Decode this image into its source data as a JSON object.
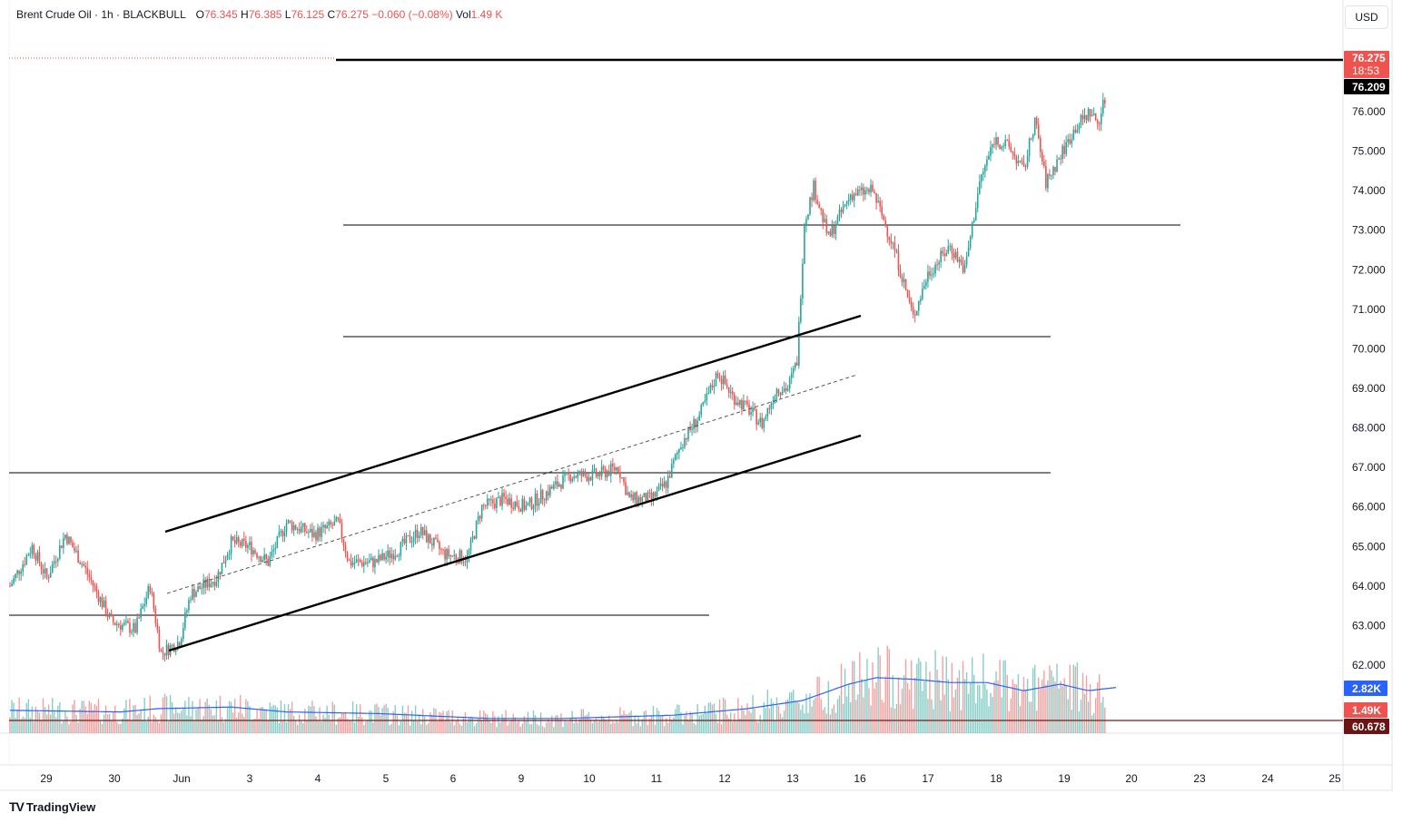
{
  "legend": {
    "symbol": "Brent Crude Oil · 1h · BLACKBULL",
    "open_key": "O",
    "open": "76.345",
    "high_key": "H",
    "high": "76.385",
    "low_key": "L",
    "low": "76.125",
    "close_key": "C",
    "close": "76.275",
    "change": "−0.060 (−0.08%)",
    "vol_key": "Vol",
    "vol": "1.49 K"
  },
  "currency_button": "USD",
  "branding": "TradingView",
  "colors": {
    "up": "#26a69a",
    "down": "#ef5350",
    "volume_ma": "#2962ff",
    "line": "#000000",
    "grid": "#e0e3eb"
  },
  "price_badges": {
    "last_price": "76.275",
    "countdown": "18:53",
    "level": "76.209",
    "vol_ma": "2.82K",
    "vol": "1.49K",
    "vol_level": "60.678"
  },
  "chart_data": {
    "type": "candlestick",
    "symbol": "Brent Crude Oil",
    "interval": "1h",
    "y_axis": {
      "ticks": [
        "76.000",
        "75.000",
        "74.000",
        "73.000",
        "72.000",
        "71.000",
        "70.000",
        "69.000",
        "68.000",
        "67.000",
        "66.000",
        "65.000",
        "64.000",
        "63.000",
        "62.000"
      ],
      "range": [
        60.4,
        77.3
      ]
    },
    "x_axis": {
      "ticks": [
        "29",
        "30",
        "Jun",
        "3",
        "4",
        "5",
        "6",
        "9",
        "10",
        "11",
        "12",
        "13",
        "16",
        "17",
        "18",
        "19",
        "20",
        "23",
        "24",
        "25"
      ]
    },
    "price_anchors": [
      {
        "slot": 0,
        "price": 64.0
      },
      {
        "slot": 12,
        "price": 65.0
      },
      {
        "slot": 20,
        "price": 64.2
      },
      {
        "slot": 30,
        "price": 65.3
      },
      {
        "slot": 40,
        "price": 64.5
      },
      {
        "slot": 55,
        "price": 63.1
      },
      {
        "slot": 68,
        "price": 62.9
      },
      {
        "slot": 76,
        "price": 64.0
      },
      {
        "slot": 82,
        "price": 62.3
      },
      {
        "slot": 92,
        "price": 62.6
      },
      {
        "slot": 98,
        "price": 63.8
      },
      {
        "slot": 112,
        "price": 64.2
      },
      {
        "slot": 120,
        "price": 65.1
      },
      {
        "slot": 130,
        "price": 65.0
      },
      {
        "slot": 140,
        "price": 64.6
      },
      {
        "slot": 150,
        "price": 65.6
      },
      {
        "slot": 165,
        "price": 65.3
      },
      {
        "slot": 178,
        "price": 65.6
      },
      {
        "slot": 184,
        "price": 64.6
      },
      {
        "slot": 198,
        "price": 64.6
      },
      {
        "slot": 210,
        "price": 64.9
      },
      {
        "slot": 222,
        "price": 65.4
      },
      {
        "slot": 236,
        "price": 64.8
      },
      {
        "slot": 248,
        "price": 64.7
      },
      {
        "slot": 256,
        "price": 66.0
      },
      {
        "slot": 268,
        "price": 66.2
      },
      {
        "slot": 280,
        "price": 66.0
      },
      {
        "slot": 292,
        "price": 66.4
      },
      {
        "slot": 304,
        "price": 66.8
      },
      {
        "slot": 318,
        "price": 66.8
      },
      {
        "slot": 330,
        "price": 67.0
      },
      {
        "slot": 336,
        "price": 66.2
      },
      {
        "slot": 348,
        "price": 66.2
      },
      {
        "slot": 356,
        "price": 66.6
      },
      {
        "slot": 364,
        "price": 67.6
      },
      {
        "slot": 374,
        "price": 68.3
      },
      {
        "slot": 384,
        "price": 69.4
      },
      {
        "slot": 392,
        "price": 68.8
      },
      {
        "slot": 400,
        "price": 68.5
      },
      {
        "slot": 408,
        "price": 68.1
      },
      {
        "slot": 416,
        "price": 69.0
      },
      {
        "slot": 422,
        "price": 69.0
      },
      {
        "slot": 427,
        "price": 69.7
      },
      {
        "slot": 431,
        "price": 73.2
      },
      {
        "slot": 436,
        "price": 74.1
      },
      {
        "slot": 444,
        "price": 72.8
      },
      {
        "slot": 456,
        "price": 73.9
      },
      {
        "slot": 468,
        "price": 74.0
      },
      {
        "slot": 480,
        "price": 72.5
      },
      {
        "slot": 490,
        "price": 70.8
      },
      {
        "slot": 498,
        "price": 71.9
      },
      {
        "slot": 510,
        "price": 72.6
      },
      {
        "slot": 518,
        "price": 72.0
      },
      {
        "slot": 526,
        "price": 74.2
      },
      {
        "slot": 534,
        "price": 75.3
      },
      {
        "slot": 542,
        "price": 75.1
      },
      {
        "slot": 550,
        "price": 74.5
      },
      {
        "slot": 556,
        "price": 75.8
      },
      {
        "slot": 562,
        "price": 74.2
      },
      {
        "slot": 570,
        "price": 74.9
      },
      {
        "slot": 578,
        "price": 75.6
      },
      {
        "slot": 586,
        "price": 76.0
      },
      {
        "slot": 590,
        "price": 75.7
      },
      {
        "slot": 594,
        "price": 76.3
      }
    ],
    "volume_ma_anchors": [
      {
        "slot": 0,
        "v": 1.4
      },
      {
        "slot": 60,
        "v": 1.3
      },
      {
        "slot": 80,
        "v": 1.5
      },
      {
        "slot": 120,
        "v": 1.6
      },
      {
        "slot": 150,
        "v": 1.3
      },
      {
        "slot": 200,
        "v": 1.2
      },
      {
        "slot": 260,
        "v": 0.9
      },
      {
        "slot": 300,
        "v": 0.9
      },
      {
        "slot": 360,
        "v": 1.1
      },
      {
        "slot": 400,
        "v": 1.5
      },
      {
        "slot": 430,
        "v": 2.0
      },
      {
        "slot": 455,
        "v": 3.0
      },
      {
        "slot": 470,
        "v": 3.4
      },
      {
        "slot": 490,
        "v": 3.3
      },
      {
        "slot": 510,
        "v": 3.1
      },
      {
        "slot": 530,
        "v": 3.1
      },
      {
        "slot": 550,
        "v": 2.6
      },
      {
        "slot": 570,
        "v": 3.0
      },
      {
        "slot": 585,
        "v": 2.6
      },
      {
        "slot": 600,
        "v": 2.8
      }
    ]
  }
}
